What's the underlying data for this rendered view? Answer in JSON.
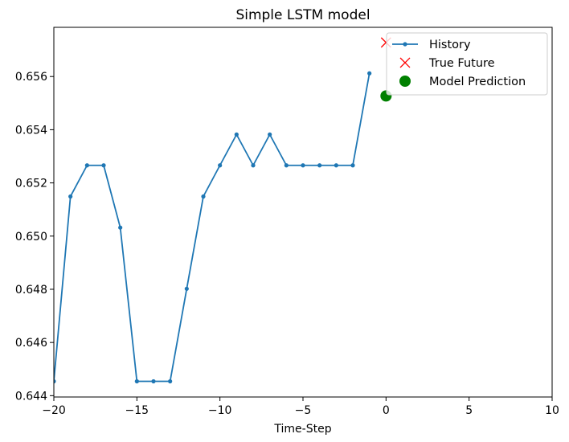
{
  "chart_data": {
    "type": "line",
    "title": "Simple LSTM model",
    "xlabel": "Time-Step",
    "ylabel": "",
    "xlim": [
      -20,
      10
    ],
    "ylim": [
      0.64395,
      0.65785
    ],
    "x_ticks": [
      -20,
      -15,
      -10,
      -5,
      0,
      5,
      10
    ],
    "x_tick_labels": [
      "−20",
      "−15",
      "−10",
      "−5",
      "0",
      "5",
      "10"
    ],
    "y_ticks": [
      0.644,
      0.646,
      0.648,
      0.65,
      0.652,
      0.654,
      0.656
    ],
    "y_tick_labels": [
      "0.644",
      "0.646",
      "0.648",
      "0.650",
      "0.652",
      "0.654",
      "0.656"
    ],
    "grid": false,
    "legend_position": "top-right",
    "series": [
      {
        "name": "History",
        "kind": "line-with-points",
        "color": "#1f77b4",
        "x": [
          -20,
          -19,
          -18,
          -17,
          -16,
          -15,
          -14,
          -13,
          -12,
          -11,
          -10,
          -9,
          -8,
          -7,
          -6,
          -5,
          -4,
          -3,
          -2,
          -1
        ],
        "y": [
          0.64454,
          0.65149,
          0.65266,
          0.65266,
          0.65032,
          0.64454,
          0.64454,
          0.64454,
          0.64802,
          0.65149,
          0.65266,
          0.65382,
          0.65266,
          0.65382,
          0.65266,
          0.65266,
          0.65266,
          0.65266,
          0.65266,
          0.65612
        ]
      },
      {
        "name": "True Future",
        "kind": "x-marker",
        "color": "#ff0000",
        "x": [
          0
        ],
        "y": [
          0.65728
        ]
      },
      {
        "name": "Model Prediction",
        "kind": "circle-marker",
        "color": "#008000",
        "x": [
          0
        ],
        "y": [
          0.65527
        ]
      }
    ]
  }
}
